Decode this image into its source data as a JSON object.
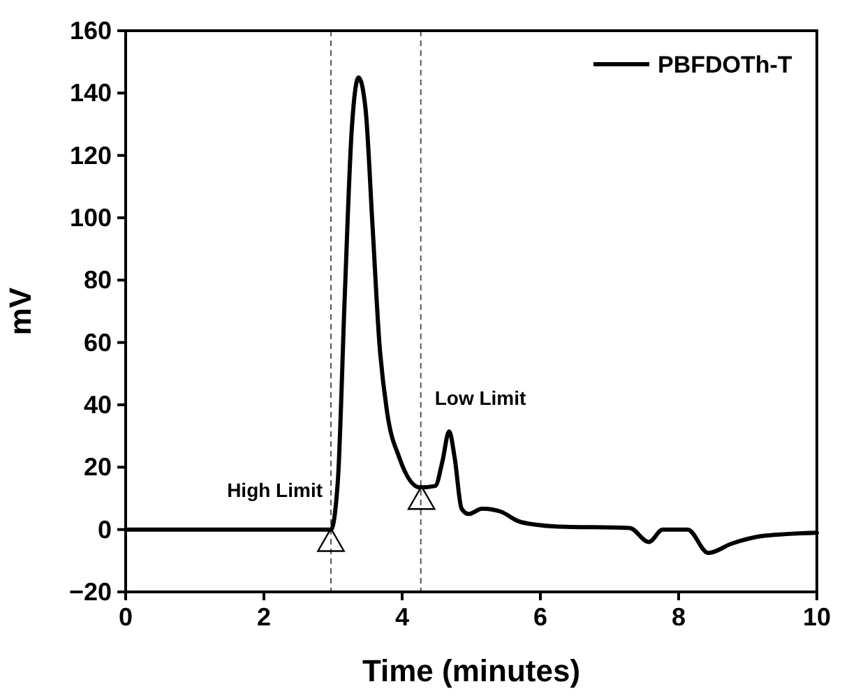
{
  "chart_data": {
    "type": "line",
    "xlabel": "Time (minutes)",
    "ylabel": "mV",
    "xlim": [
      0,
      10
    ],
    "ylim": [
      -20,
      160
    ],
    "xticks": [
      0,
      2,
      4,
      6,
      8,
      10
    ],
    "yticks": [
      -20,
      0,
      20,
      40,
      60,
      80,
      100,
      120,
      140,
      160
    ],
    "legend": "top right",
    "grid": false,
    "series": [
      {
        "name": "PBFDOTh-T",
        "color": "#000000",
        "marker": "none",
        "line_style": "solid",
        "x": [
          0,
          2.97,
          3.07,
          3.17,
          3.27,
          3.37,
          3.47,
          3.57,
          3.67,
          3.78,
          3.96,
          4.26,
          4.48,
          4.58,
          4.68,
          4.76,
          4.86,
          4.96,
          5.16,
          5.42,
          5.68,
          5.96,
          6.22,
          7.29,
          7.57,
          7.77,
          8.13,
          8.43,
          8.77,
          9.24,
          10
        ],
        "values": [
          0,
          0,
          15.7,
          75,
          128,
          145,
          135,
          98,
          60,
          38,
          23,
          13.5,
          14,
          21.6,
          31.5,
          23,
          6.7,
          5,
          6.7,
          5.8,
          2.7,
          1.5,
          1,
          0.5,
          -4,
          0,
          0,
          -7.5,
          -4.5,
          -2,
          -1
        ]
      },
      {
        "type": "scatter",
        "color": "#000000",
        "marker": "triangle",
        "x": [
          2.97,
          4.28
        ],
        "values": [
          -4.5,
          9
        ]
      }
    ],
    "ref_lines": [
      {
        "axis": "x",
        "value": 2.97,
        "color": "#555555",
        "line_style": "dashed"
      },
      {
        "axis": "x",
        "value": 4.27,
        "color": "#555555",
        "line_style": "dashed"
      }
    ],
    "annotations": [
      "High Limit",
      "Low Limit"
    ]
  }
}
